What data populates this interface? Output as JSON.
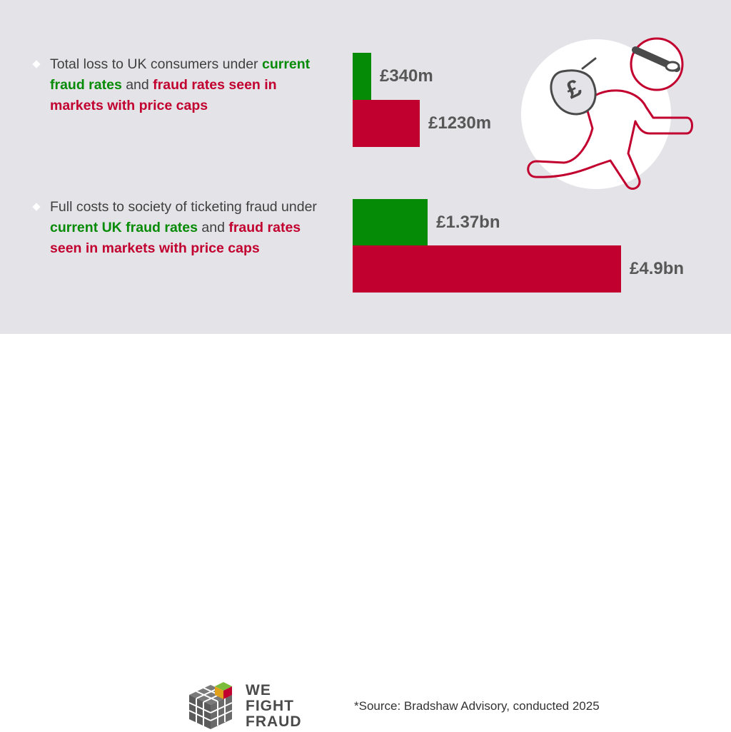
{
  "stats": [
    {
      "text_a": "Total loss to UK consumers under ",
      "green": "current fraud rates",
      "text_b": " and ",
      "red": "fraud rates seen in markets with price caps"
    },
    {
      "text_a": "Full costs to society of ticketing fraud under ",
      "green": "current UK fraud rates",
      "text_b": " and ",
      "red": "fraud rates seen in markets with price caps"
    }
  ],
  "chart_data": [
    {
      "type": "bar",
      "orientation": "horizontal",
      "categories": [
        "current fraud rates",
        "fraud rates seen in markets with price caps"
      ],
      "values": [
        340,
        1230
      ],
      "unit": "£m",
      "labels": [
        "£340m",
        "£1230m"
      ],
      "colors": [
        "#068b06",
        "#c2002f"
      ]
    },
    {
      "type": "bar",
      "orientation": "horizontal",
      "categories": [
        "current UK fraud rates",
        "fraud rates seen in markets with price caps"
      ],
      "values": [
        1.37,
        4.9
      ],
      "unit": "£bn",
      "labels": [
        "£1.37bn",
        "£4.9bn"
      ],
      "colors": [
        "#068b06",
        "#c2002f"
      ]
    }
  ],
  "logo": {
    "line1": "WE",
    "line2": "FIGHT",
    "line3": "FRAUD"
  },
  "source": "*Source: Bradshaw Advisory, conducted 2025",
  "icons": [
    "thief-with-money-bag-icon",
    "pound-sign-icon",
    "cube-logo-icon",
    "bullet-diamond-icon"
  ]
}
